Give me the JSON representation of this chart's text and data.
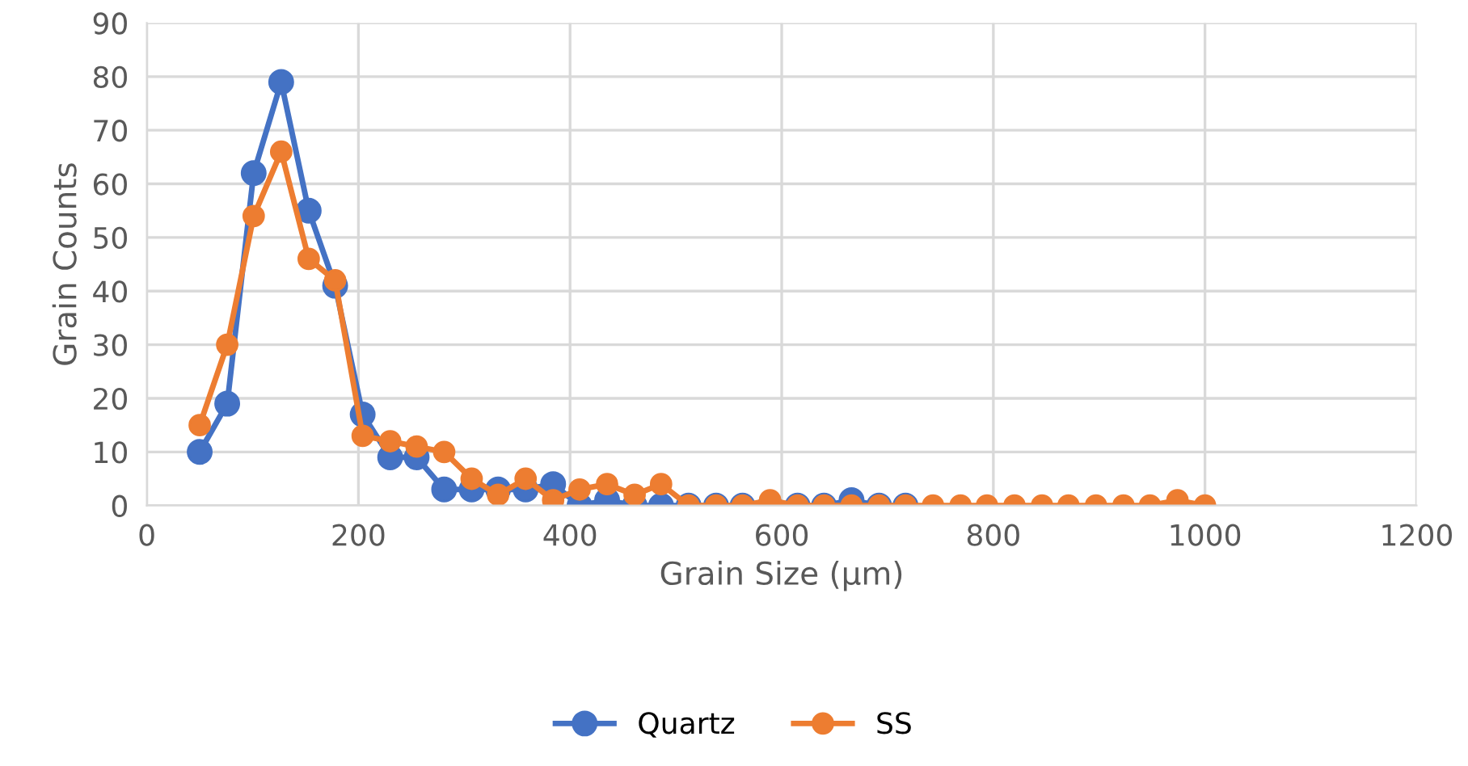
{
  "chart_data": {
    "type": "line",
    "xlabel": "Grain Size (µm)",
    "ylabel": "Grain Counts",
    "x": [
      50,
      76,
      101,
      127,
      153,
      178,
      204,
      230,
      255,
      281,
      307,
      332,
      358,
      384,
      409,
      435,
      461,
      486,
      512,
      538,
      563,
      589,
      615,
      640,
      666,
      692,
      717,
      743,
      769,
      794,
      820,
      846,
      871,
      897,
      923,
      948,
      974,
      1000
    ],
    "series": [
      {
        "name": "Quartz",
        "color": "#4472c4",
        "values": [
          10,
          19,
          62,
          79,
          55,
          41,
          17,
          9,
          9,
          3,
          3,
          3,
          3,
          4,
          0,
          1,
          0,
          0,
          0,
          0,
          0,
          0,
          0,
          0,
          1,
          0,
          0,
          null,
          null,
          null,
          null,
          null,
          null,
          null,
          null,
          null,
          null,
          null
        ]
      },
      {
        "name": "SS",
        "color": "#ed7d31",
        "values": [
          15,
          30,
          54,
          66,
          46,
          42,
          13,
          12,
          11,
          10,
          5,
          2,
          5,
          1,
          3,
          4,
          2,
          4,
          0,
          0,
          0,
          1,
          0,
          0,
          0,
          0,
          0,
          0,
          0,
          0,
          0,
          0,
          0,
          0,
          0,
          0,
          1,
          0
        ]
      }
    ],
    "xlim": [
      0,
      1200
    ],
    "xticks": [
      0,
      200,
      400,
      600,
      800,
      1000,
      1200
    ],
    "ylim": [
      0,
      90
    ],
    "yticks": [
      0,
      10,
      20,
      30,
      40,
      50,
      60,
      70,
      80,
      90
    ],
    "grid": true,
    "legend": "bottom",
    "marker": "circle",
    "line_style": "solid"
  }
}
